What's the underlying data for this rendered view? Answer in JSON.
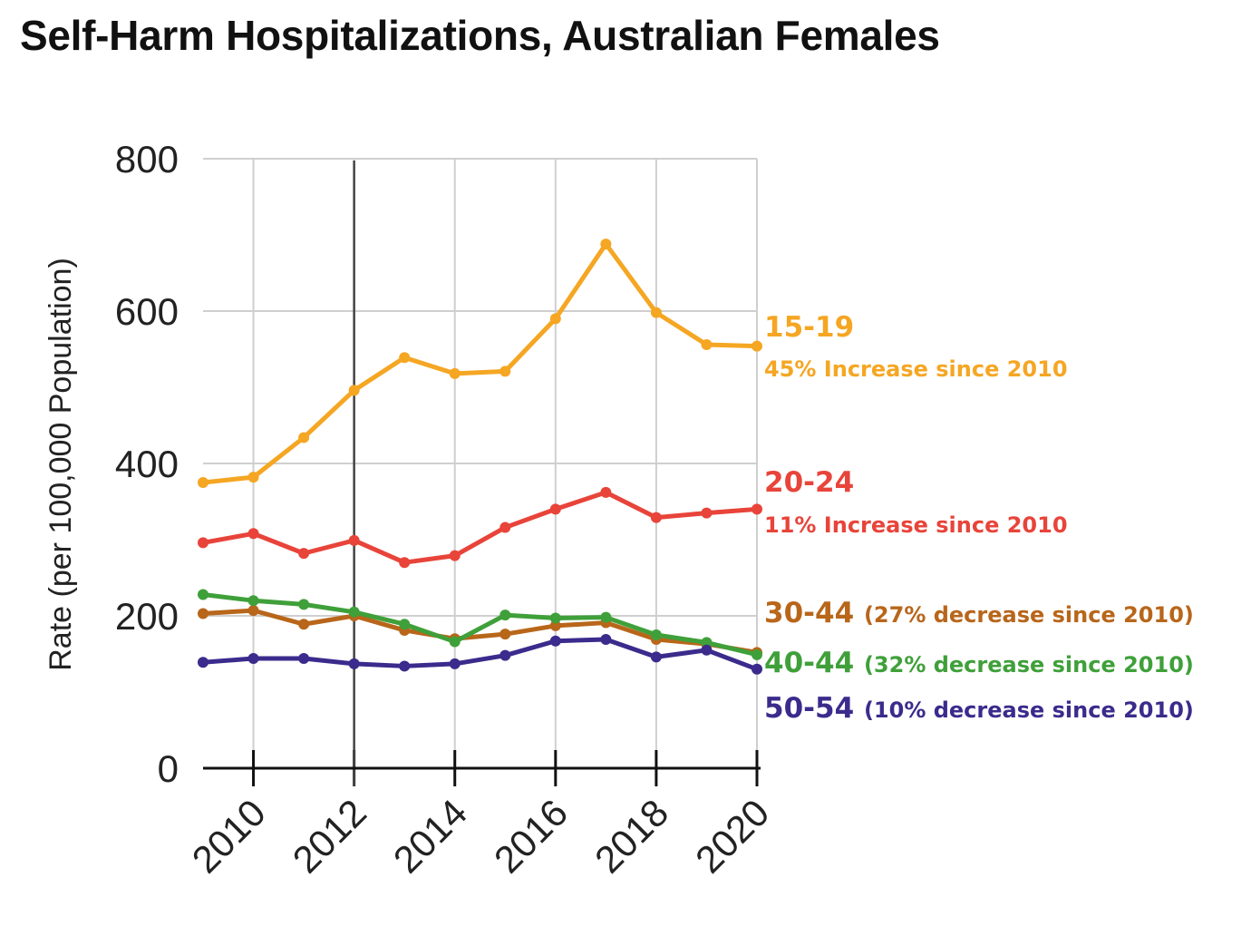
{
  "chart_data": {
    "type": "line",
    "title": "Self-Harm Hospitalizations, Australian Females",
    "xlabel": "",
    "ylabel": "Rate (per 100,000 Population)",
    "x": [
      2009,
      2010,
      2011,
      2012,
      2013,
      2014,
      2015,
      2016,
      2017,
      2018,
      2019,
      2020
    ],
    "x_ticks": [
      "2010",
      "2012",
      "2014",
      "2016",
      "2018",
      "2020"
    ],
    "y_ticks": [
      "0",
      "200",
      "400",
      "600",
      "800"
    ],
    "ylim": [
      0,
      800
    ],
    "grid": true,
    "marker_year": 2012,
    "series": [
      {
        "name": "15-19",
        "note": "45% Increase since 2010",
        "color": "#F5A623",
        "values": [
          375,
          382,
          434,
          496,
          539,
          518,
          521,
          590,
          688,
          598,
          556,
          554
        ]
      },
      {
        "name": "20-24",
        "note": "11% Increase since 2010",
        "color": "#E8443A",
        "values": [
          296,
          308,
          282,
          299,
          270,
          279,
          316,
          340,
          362,
          329,
          335,
          340
        ]
      },
      {
        "name": "30-44",
        "note": "(27% decrease since 2010)",
        "color": "#B8661A",
        "values": [
          203,
          207,
          189,
          200,
          181,
          170,
          176,
          187,
          191,
          169,
          163,
          152
        ]
      },
      {
        "name": "40-44",
        "note": "(32% decrease since 2010)",
        "color": "#3FA03A",
        "values": [
          228,
          220,
          215,
          205,
          189,
          166,
          201,
          197,
          198,
          175,
          165,
          149
        ]
      },
      {
        "name": "50-54",
        "note": "(10% decrease since 2010)",
        "color": "#3B2B8C",
        "values": [
          139,
          144,
          144,
          137,
          134,
          137,
          148,
          167,
          169,
          146,
          155,
          130
        ]
      }
    ]
  }
}
